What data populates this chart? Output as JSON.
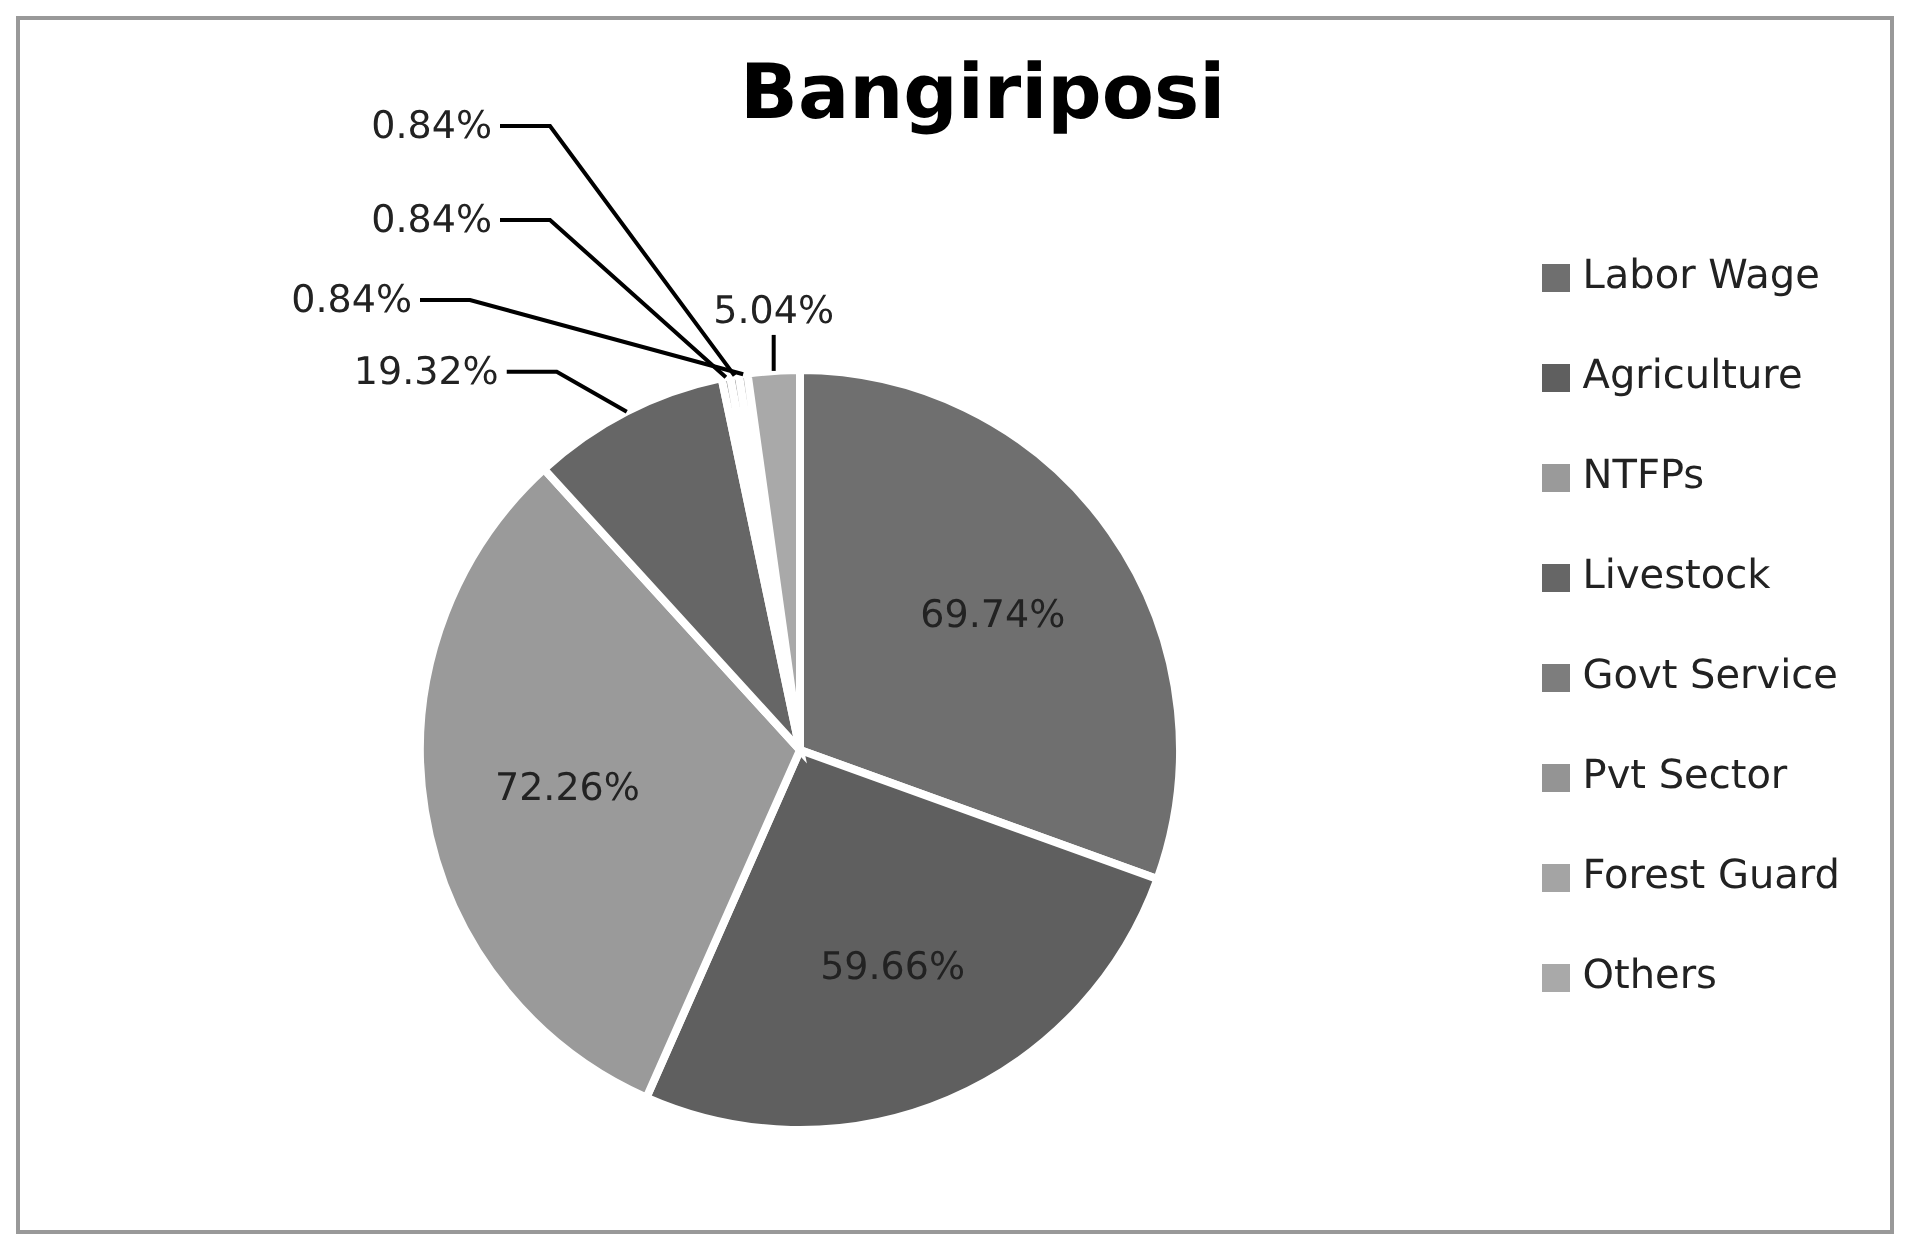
{
  "chart_data": {
    "type": "pie",
    "title": "Bangiriposi",
    "categories": [
      "Labor Wage",
      "Agriculture",
      "NTFPs",
      "Livestock",
      "Govt Service",
      "Pvt Sector",
      "Forest Guard",
      "Others"
    ],
    "values": [
      69.74,
      59.66,
      72.26,
      19.32,
      0.84,
      0.84,
      0.84,
      5.04
    ],
    "colors": [
      "#6f6f6f",
      "#5f5f5f",
      "#9a9a9a",
      "#666666",
      "#7d7d7d",
      "#949494",
      "#a4a4a4",
      "#a9a9a9"
    ],
    "value_labels": [
      "69.74%",
      "59.66%",
      "72.26%",
      "19.32%",
      "0.84%",
      "0.84%",
      "0.84%",
      "5.04%"
    ],
    "legend": "right"
  }
}
